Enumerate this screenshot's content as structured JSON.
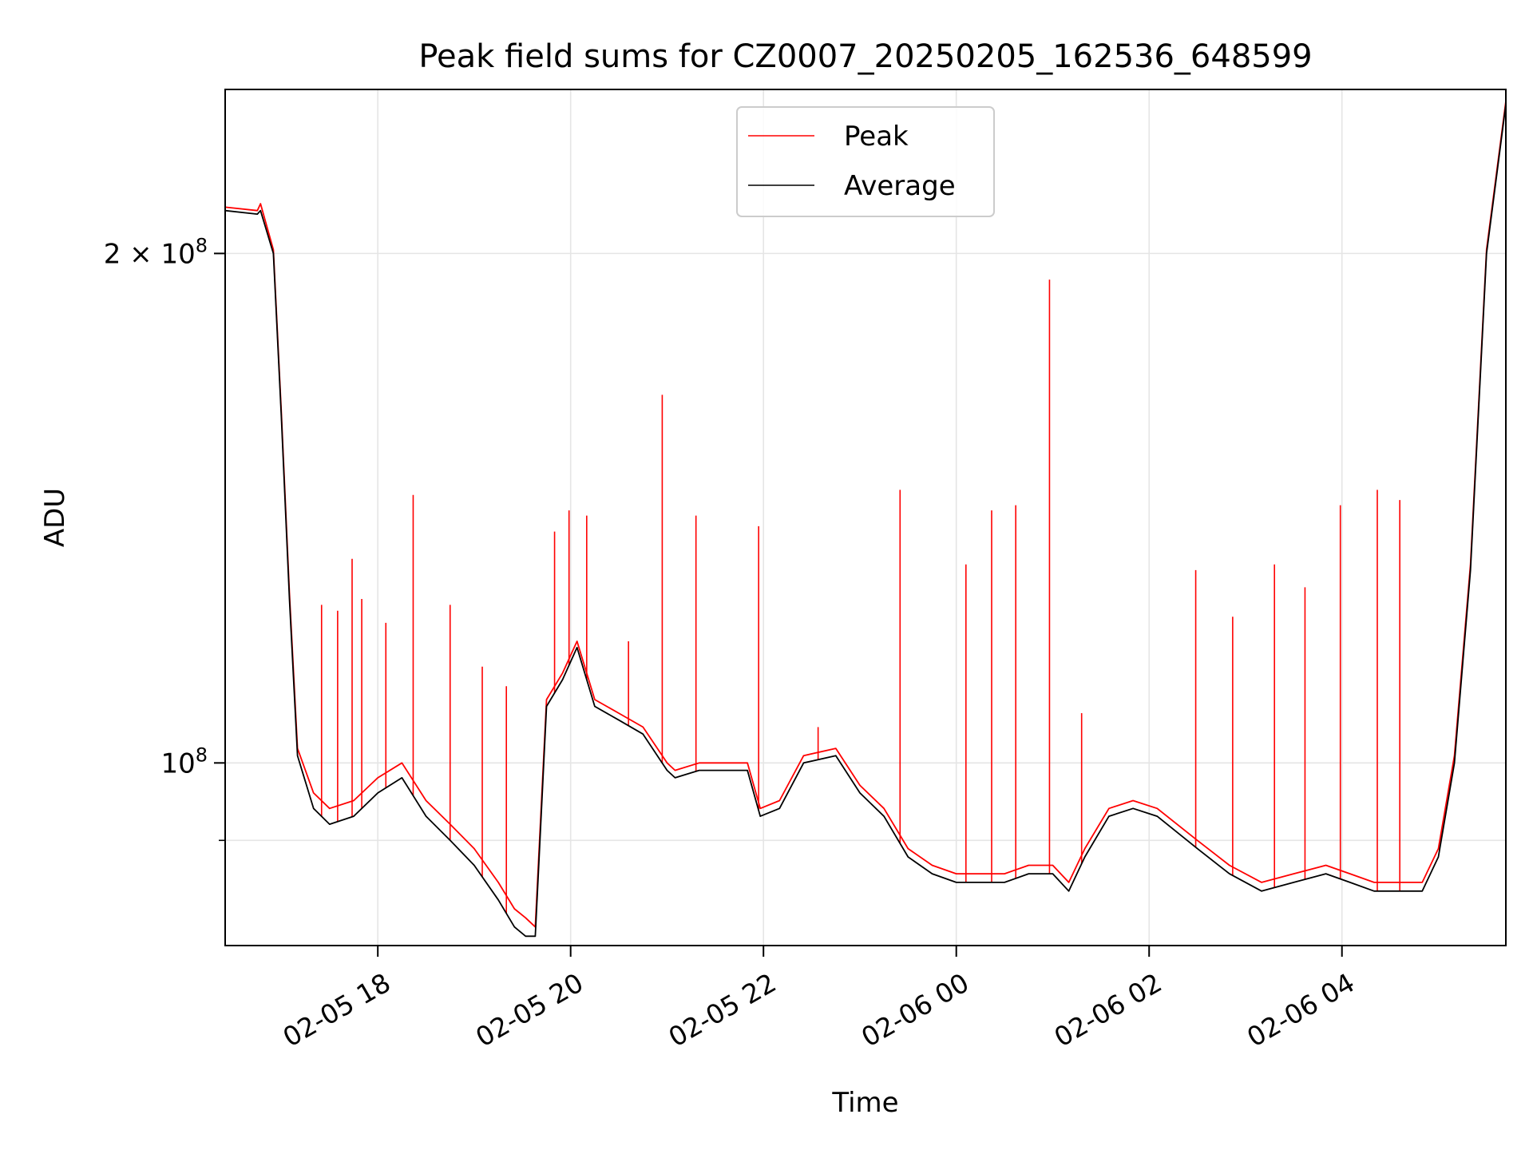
{
  "chart_data": {
    "type": "line",
    "title": "Peak field sums for CZ0007_20250205_162536_648599",
    "xlabel": "Time",
    "ylabel": "ADU",
    "yscale": "log",
    "ylim": [
      78000000,
      250000000
    ],
    "xlim": [
      "2025-02-05 16:25",
      "2025-02-06 05:42"
    ],
    "x_tick_labels": [
      "02-05 18",
      "02-05 20",
      "02-05 22",
      "02-06 00",
      "02-06 02",
      "02-06 04"
    ],
    "x_tick_values": [
      "2025-02-05 18:00",
      "2025-02-05 20:00",
      "2025-02-05 22:00",
      "2025-02-06 00:00",
      "2025-02-06 02:00",
      "2025-02-06 04:00"
    ],
    "y_tick_labels": [
      {
        "value": 100000000,
        "mantissa": "",
        "base": "10",
        "exp": "8"
      },
      {
        "value": 200000000,
        "mantissa": "2 × ",
        "base": "10",
        "exp": "8"
      }
    ],
    "y_minor_ticks": [
      90000000
    ],
    "grid": true,
    "legend": {
      "placement": "upper center",
      "entries": [
        "Peak",
        "Average"
      ]
    },
    "series": [
      {
        "name": "Average",
        "color": "#000000",
        "x": [
          "2025-02-05 16:25",
          "2025-02-05 16:45",
          "2025-02-05 16:47",
          "2025-02-05 16:55",
          "2025-02-05 17:00",
          "2025-02-05 17:05",
          "2025-02-05 17:10",
          "2025-02-05 17:20",
          "2025-02-05 17:30",
          "2025-02-05 17:45",
          "2025-02-05 18:00",
          "2025-02-05 18:15",
          "2025-02-05 18:30",
          "2025-02-05 18:45",
          "2025-02-05 19:00",
          "2025-02-05 19:15",
          "2025-02-05 19:25",
          "2025-02-05 19:32",
          "2025-02-05 19:38",
          "2025-02-05 19:45",
          "2025-02-05 19:55",
          "2025-02-05 20:04",
          "2025-02-05 20:15",
          "2025-02-05 20:30",
          "2025-02-05 20:45",
          "2025-02-05 21:00",
          "2025-02-05 21:05",
          "2025-02-05 21:20",
          "2025-02-05 21:35",
          "2025-02-05 21:50",
          "2025-02-05 21:58",
          "2025-02-05 22:10",
          "2025-02-05 22:25",
          "2025-02-05 22:45",
          "2025-02-05 23:00",
          "2025-02-05 23:15",
          "2025-02-05 23:30",
          "2025-02-05 23:45",
          "2025-02-06 00:00",
          "2025-02-06 00:15",
          "2025-02-06 00:30",
          "2025-02-06 00:45",
          "2025-02-06 01:00",
          "2025-02-06 01:10",
          "2025-02-06 01:20",
          "2025-02-06 01:35",
          "2025-02-06 01:50",
          "2025-02-06 02:05",
          "2025-02-06 02:30",
          "2025-02-06 02:50",
          "2025-02-06 03:10",
          "2025-02-06 03:30",
          "2025-02-06 03:50",
          "2025-02-06 04:05",
          "2025-02-06 04:20",
          "2025-02-06 04:35",
          "2025-02-06 04:50",
          "2025-02-06 05:00",
          "2025-02-06 05:10",
          "2025-02-06 05:20",
          "2025-02-06 05:30",
          "2025-02-06 05:42"
        ],
        "y": [
          212000000,
          211000000,
          212000000,
          200000000,
          160000000,
          125000000,
          101000000,
          94000000,
          92000000,
          93000000,
          96000000,
          98000000,
          93000000,
          90000000,
          87000000,
          83000000,
          80000000,
          79000000,
          79000000,
          108000000,
          112000000,
          117000000,
          108000000,
          106000000,
          104000000,
          99000000,
          98000000,
          99000000,
          99000000,
          99000000,
          93000000,
          94000000,
          100000000,
          101000000,
          96000000,
          93000000,
          88000000,
          86000000,
          85000000,
          85000000,
          85000000,
          86000000,
          86000000,
          84000000,
          88000000,
          93000000,
          94000000,
          93000000,
          89000000,
          86000000,
          84000000,
          85000000,
          86000000,
          85000000,
          84000000,
          84000000,
          84000000,
          88000000,
          100000000,
          130000000,
          200000000,
          245000000
        ]
      },
      {
        "name": "Peak",
        "color": "#ff0000",
        "x": [
          "2025-02-05 16:25",
          "2025-02-05 16:45",
          "2025-02-05 16:47",
          "2025-02-05 16:55",
          "2025-02-05 17:00",
          "2025-02-05 17:05",
          "2025-02-05 17:10",
          "2025-02-05 17:20",
          "2025-02-05 17:30",
          "2025-02-05 17:45",
          "2025-02-05 18:00",
          "2025-02-05 18:15",
          "2025-02-05 18:30",
          "2025-02-05 18:45",
          "2025-02-05 19:00",
          "2025-02-05 19:15",
          "2025-02-05 19:25",
          "2025-02-05 19:32",
          "2025-02-05 19:38",
          "2025-02-05 19:45",
          "2025-02-05 19:55",
          "2025-02-05 20:04",
          "2025-02-05 20:15",
          "2025-02-05 20:30",
          "2025-02-05 20:45",
          "2025-02-05 21:00",
          "2025-02-05 21:05",
          "2025-02-05 21:20",
          "2025-02-05 21:35",
          "2025-02-05 21:50",
          "2025-02-05 21:58",
          "2025-02-05 22:10",
          "2025-02-05 22:25",
          "2025-02-05 22:45",
          "2025-02-05 23:00",
          "2025-02-05 23:15",
          "2025-02-05 23:30",
          "2025-02-05 23:45",
          "2025-02-06 00:00",
          "2025-02-06 00:15",
          "2025-02-06 00:30",
          "2025-02-06 00:45",
          "2025-02-06 01:00",
          "2025-02-06 01:10",
          "2025-02-06 01:20",
          "2025-02-06 01:35",
          "2025-02-06 01:50",
          "2025-02-06 02:05",
          "2025-02-06 02:30",
          "2025-02-06 02:50",
          "2025-02-06 03:10",
          "2025-02-06 03:30",
          "2025-02-06 03:50",
          "2025-02-06 04:05",
          "2025-02-06 04:20",
          "2025-02-06 04:35",
          "2025-02-06 04:50",
          "2025-02-06 05:00",
          "2025-02-06 05:10",
          "2025-02-06 05:20",
          "2025-02-06 05:30",
          "2025-02-06 05:42"
        ],
        "y": [
          213000000,
          212000000,
          214000000,
          201000000,
          161000000,
          126000000,
          102000000,
          96000000,
          94000000,
          95000000,
          98000000,
          100000000,
          95000000,
          92000000,
          89000000,
          85000000,
          82000000,
          81000000,
          80000000,
          109000000,
          113000000,
          118000000,
          109000000,
          107000000,
          105000000,
          100000000,
          99000000,
          100000000,
          100000000,
          100000000,
          94000000,
          95000000,
          101000000,
          102000000,
          97000000,
          94000000,
          89000000,
          87000000,
          86000000,
          86000000,
          86000000,
          87000000,
          87000000,
          85000000,
          89000000,
          94000000,
          95000000,
          94000000,
          90000000,
          87000000,
          85000000,
          86000000,
          87000000,
          86000000,
          85000000,
          85000000,
          85000000,
          89000000,
          101000000,
          131000000,
          201000000,
          246000000
        ],
        "spikes": [
          {
            "x": "2025-02-05 17:25",
            "y": 124000000
          },
          {
            "x": "2025-02-05 17:35",
            "y": 123000000
          },
          {
            "x": "2025-02-05 17:44",
            "y": 132000000
          },
          {
            "x": "2025-02-05 17:50",
            "y": 125000000
          },
          {
            "x": "2025-02-05 18:05",
            "y": 121000000
          },
          {
            "x": "2025-02-05 18:22",
            "y": 144000000
          },
          {
            "x": "2025-02-05 18:45",
            "y": 124000000
          },
          {
            "x": "2025-02-05 19:05",
            "y": 114000000
          },
          {
            "x": "2025-02-05 19:20",
            "y": 111000000
          },
          {
            "x": "2025-02-05 19:50",
            "y": 137000000
          },
          {
            "x": "2025-02-05 19:59",
            "y": 141000000
          },
          {
            "x": "2025-02-05 20:10",
            "y": 140000000
          },
          {
            "x": "2025-02-05 20:36",
            "y": 118000000
          },
          {
            "x": "2025-02-05 20:57",
            "y": 165000000
          },
          {
            "x": "2025-02-05 21:18",
            "y": 140000000
          },
          {
            "x": "2025-02-05 21:57",
            "y": 138000000
          },
          {
            "x": "2025-02-05 22:34",
            "y": 105000000
          },
          {
            "x": "2025-02-05 23:25",
            "y": 145000000
          },
          {
            "x": "2025-02-06 00:06",
            "y": 131000000
          },
          {
            "x": "2025-02-06 00:22",
            "y": 141000000
          },
          {
            "x": "2025-02-06 00:37",
            "y": 142000000
          },
          {
            "x": "2025-02-06 00:58",
            "y": 193000000
          },
          {
            "x": "2025-02-06 01:18",
            "y": 107000000
          },
          {
            "x": "2025-02-06 02:29",
            "y": 130000000
          },
          {
            "x": "2025-02-06 02:52",
            "y": 122000000
          },
          {
            "x": "2025-02-06 03:18",
            "y": 131000000
          },
          {
            "x": "2025-02-06 03:37",
            "y": 127000000
          },
          {
            "x": "2025-02-06 03:59",
            "y": 142000000
          },
          {
            "x": "2025-02-06 04:22",
            "y": 145000000
          },
          {
            "x": "2025-02-06 04:36",
            "y": 143000000
          }
        ]
      }
    ]
  }
}
